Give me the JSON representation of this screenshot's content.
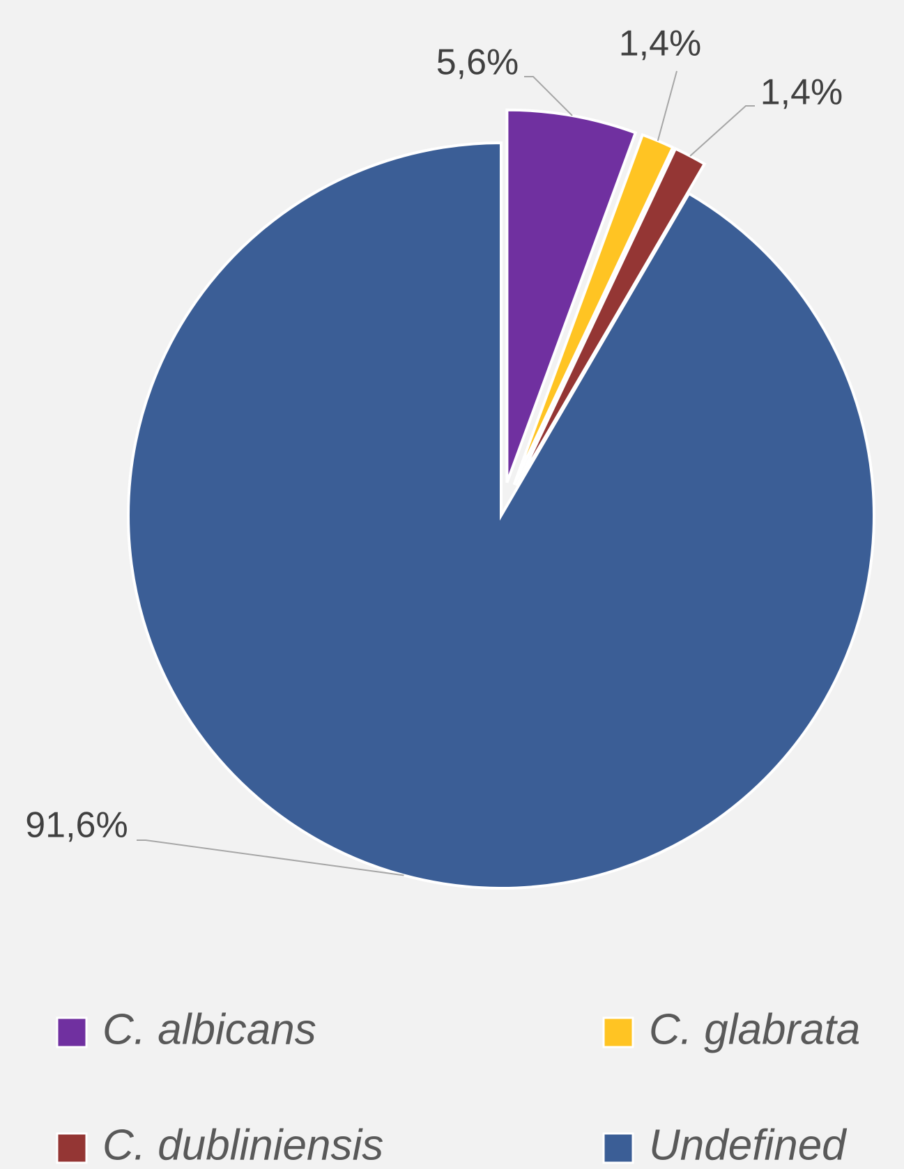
{
  "chart_data": {
    "type": "pie",
    "categories": [
      "C. albicans",
      "C. glabrata",
      "C. dubliniensis",
      "Undefined"
    ],
    "values": [
      5.6,
      1.4,
      1.4,
      91.6
    ],
    "value_labels": [
      "5,6%",
      "1,4%",
      "1,4%",
      "91,6%"
    ],
    "colors": [
      "#7030a0",
      "#ffc423",
      "#943634",
      "#3b5e96"
    ],
    "legend": "bottom"
  }
}
